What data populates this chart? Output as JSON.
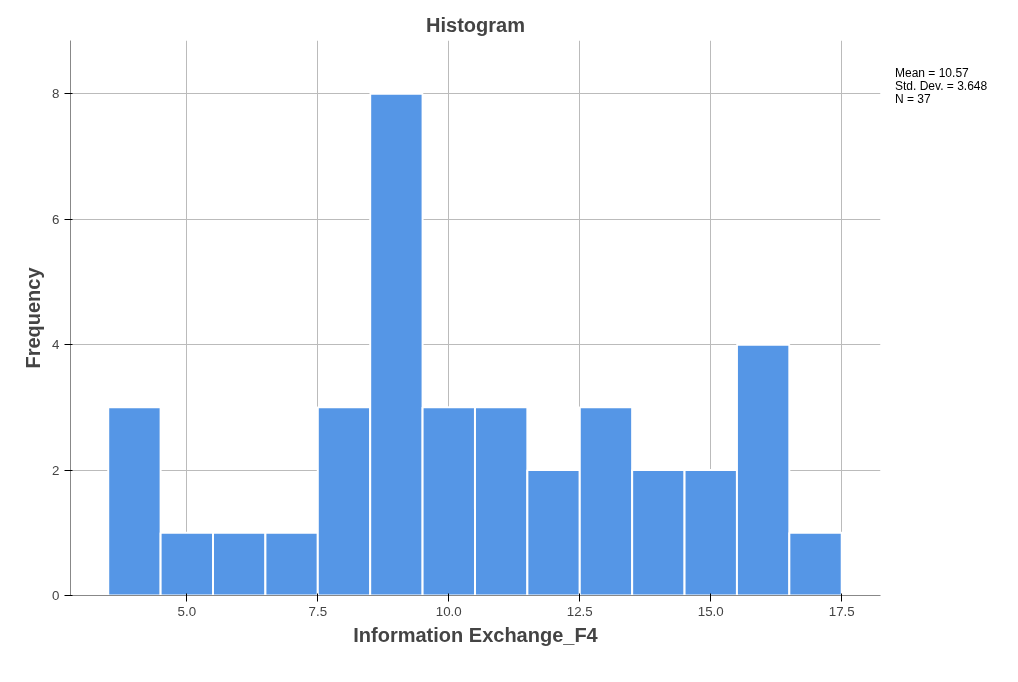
{
  "chart_data": {
    "type": "histogram",
    "title": "Histogram",
    "xlabel": "Information Exchange_F4",
    "ylabel": "Frequency",
    "bins": [
      3.5,
      4.5,
      5.5,
      6.5,
      7.5,
      8.5,
      9.5,
      10.5,
      11.5,
      12.5,
      13.5,
      14.5,
      15.5,
      16.5,
      17.5
    ],
    "values": [
      3,
      1,
      1,
      1,
      3,
      8,
      3,
      3,
      2,
      3,
      2,
      2,
      4,
      1
    ],
    "color": "#5596e6",
    "xlim": [
      2.78,
      18.24
    ],
    "xticks": [
      {
        "value": 5,
        "label": "5.0"
      },
      {
        "value": 7.5,
        "label": "7.5"
      },
      {
        "value": 10,
        "label": "10.0"
      },
      {
        "value": 12.5,
        "label": "12.5"
      },
      {
        "value": 15,
        "label": "15.0"
      },
      {
        "value": 17.5,
        "label": "17.5"
      }
    ],
    "ylim": [
      0,
      8.85
    ],
    "yticks": [
      0,
      2,
      4,
      6,
      8
    ],
    "grid": true,
    "annotations": [
      "Mean = 10.57",
      "Std. Dev. = 3.648",
      "N = 37"
    ]
  }
}
